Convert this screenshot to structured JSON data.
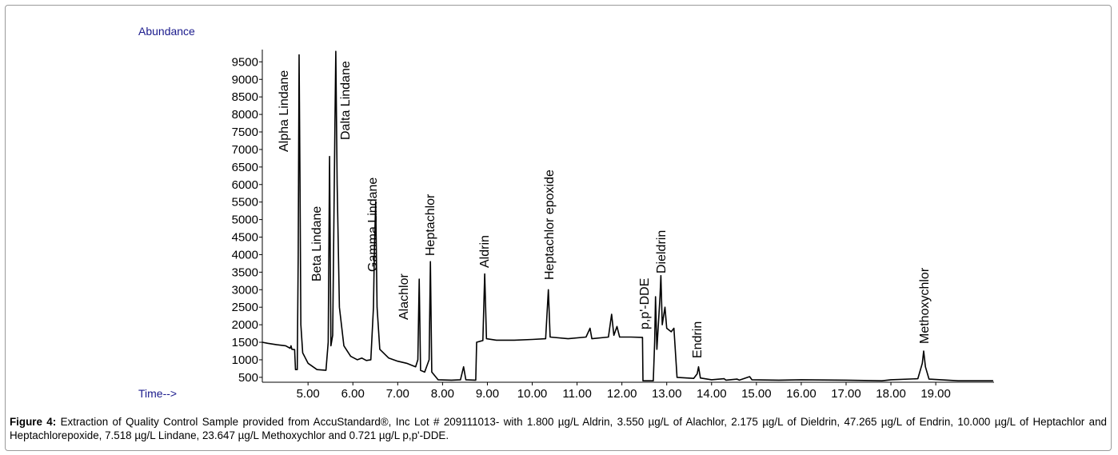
{
  "chart_data": {
    "type": "line",
    "y_label": "Abundance",
    "x_label": "Time-->",
    "color": "#000000",
    "x": [
      3.98,
      4.1,
      4.3,
      4.5,
      4.6,
      4.62,
      4.64,
      4.7,
      4.72,
      4.76,
      4.78,
      4.8,
      4.82,
      4.84,
      4.88,
      5.0,
      5.2,
      5.4,
      5.45,
      5.48,
      5.51,
      5.55,
      5.6,
      5.62,
      5.65,
      5.7,
      5.8,
      5.95,
      6.1,
      6.2,
      6.3,
      6.4,
      6.46,
      6.48,
      6.51,
      6.54,
      6.6,
      6.8,
      7.0,
      7.2,
      7.4,
      7.45,
      7.48,
      7.51,
      7.6,
      7.7,
      7.73,
      7.76,
      7.9,
      8.2,
      8.4,
      8.47,
      8.52,
      8.74,
      8.76,
      8.9,
      8.94,
      8.98,
      9.2,
      9.6,
      10.0,
      10.3,
      10.36,
      10.4,
      10.8,
      11.2,
      11.29,
      11.33,
      11.7,
      11.77,
      11.82,
      11.89,
      11.95,
      12.2,
      12.46,
      12.47,
      12.7,
      12.73,
      12.75,
      12.78,
      12.85,
      12.87,
      12.9,
      12.96,
      13.0,
      13.1,
      13.16,
      13.23,
      13.6,
      13.68,
      13.71,
      13.75,
      14.0,
      14.28,
      14.32,
      14.57,
      14.62,
      14.85,
      14.9,
      15.5,
      16.0,
      17.0,
      17.8,
      18.0,
      18.6,
      18.7,
      18.73,
      18.77,
      18.85,
      19.5,
      20.28
    ],
    "values": [
      1500,
      1470,
      1430,
      1400,
      1330,
      1400,
      1300,
      1290,
      720,
      720,
      4000,
      9700,
      6200,
      2000,
      1200,
      900,
      720,
      700,
      1500,
      6800,
      1400,
      1700,
      7700,
      9800,
      6000,
      2500,
      1400,
      1100,
      1000,
      1050,
      980,
      1000,
      2500,
      4200,
      5500,
      2500,
      1300,
      1050,
      960,
      900,
      800,
      1000,
      3300,
      700,
      650,
      1000,
      3800,
      650,
      430,
      420,
      430,
      800,
      430,
      420,
      1500,
      1550,
      3450,
      1600,
      1560,
      1560,
      1580,
      1600,
      3000,
      1650,
      1600,
      1650,
      1900,
      1600,
      1650,
      2300,
      1700,
      1950,
      1650,
      1650,
      1640,
      400,
      400,
      1500,
      2800,
      1300,
      2800,
      3400,
      2000,
      2500,
      1900,
      1800,
      1900,
      500,
      470,
      600,
      800,
      480,
      430,
      460,
      420,
      450,
      420,
      520,
      430,
      420,
      430,
      420,
      400,
      430,
      460,
      900,
      1250,
      800,
      450,
      400,
      400
    ],
    "xlim": [
      3.98,
      20.3
    ],
    "ylim": [
      360,
      9850
    ],
    "xticks": [
      {
        "value": 5,
        "label": "5.00"
      },
      {
        "value": 6,
        "label": "6.00"
      },
      {
        "value": 7,
        "label": "7.00"
      },
      {
        "value": 8,
        "label": "8.00"
      },
      {
        "value": 9,
        "label": "9.00"
      },
      {
        "value": 10,
        "label": "10.00"
      },
      {
        "value": 11,
        "label": "11.00"
      },
      {
        "value": 12,
        "label": "12.00"
      },
      {
        "value": 13,
        "label": "13.00"
      },
      {
        "value": 14,
        "label": "14.00"
      },
      {
        "value": 15,
        "label": "15.00"
      },
      {
        "value": 16,
        "label": "16.00"
      },
      {
        "value": 17,
        "label": "17.00"
      },
      {
        "value": 18,
        "label": "18.00"
      },
      {
        "value": 19,
        "label": "19.00"
      }
    ],
    "yticks": [
      500,
      1000,
      1500,
      2000,
      2500,
      3000,
      3500,
      4000,
      4500,
      5000,
      5500,
      6000,
      6500,
      7000,
      7500,
      8000,
      8500,
      9000,
      9500
    ],
    "annotations": [
      "Alpha Lindane",
      "Beta Lindane",
      "Dalta Lindane",
      "Gamma Lindane",
      "Alachlor",
      "Heptachlor",
      "Aldrin",
      "Heptachlor epoxide",
      "p,p'-DDE",
      "Dieldrin",
      "Endrin",
      "Methoxychlor"
    ]
  },
  "caption": {
    "label": "Figure 4:",
    "text": "Extraction of Quality Control Sample provided from AccuStandard®, Inc Lot # 209111013- with 1.800 µg/L Aldrin, 3.550 µg/L of Alachlor, 2.175 µg/L of Dieldrin, 47.265 µg/L of Endrin, 10.000 µg/L of Heptachlor and Heptachlorepoxide, 7.518 µg/L Lindane, 23.647 µg/L Methoxychlor and 0.721 µg/L p,p'-DDE."
  }
}
